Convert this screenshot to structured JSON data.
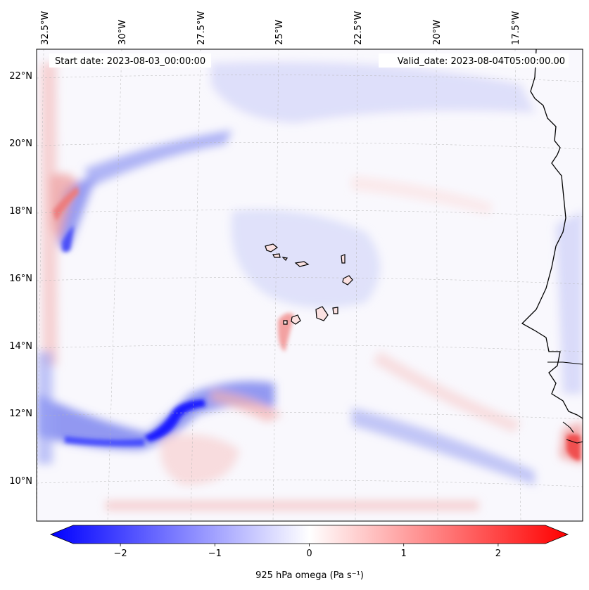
{
  "map": {
    "start_label": "Start date: 2023-08-03_00:00:00",
    "valid_label": "Valid_date: 2023-08-04T05:00:00.00",
    "lon_labels": [
      "32.5°W",
      "30°W",
      "27.5°W",
      "25°W",
      "22.5°W",
      "20°W",
      "17.5°W"
    ],
    "lat_labels": [
      "22°N",
      "20°N",
      "18°N",
      "16°N",
      "14°N",
      "12°N",
      "10°N"
    ],
    "lon_values": [
      -32.5,
      -30,
      -27.5,
      -25,
      -22.5,
      -20,
      -17.5
    ],
    "lat_values": [
      22,
      20,
      18,
      16,
      14,
      12,
      10
    ],
    "extent": {
      "lon_min": -32.7,
      "lon_max": -15.4,
      "lat_min": 8.9,
      "lat_max": 22.8
    }
  },
  "colorbar": {
    "ticks": [
      {
        "value": -2,
        "label": "−2"
      },
      {
        "value": -1,
        "label": "−1"
      },
      {
        "value": 0,
        "label": "0"
      },
      {
        "value": 1,
        "label": "1"
      },
      {
        "value": 2,
        "label": "2"
      }
    ],
    "range": [
      -2.5,
      2.5
    ],
    "label": "925 hPa omega (Pa s⁻¹)",
    "colormap": "bwr",
    "colors": {
      "negative": "#0000ff",
      "zero": "#ffffff",
      "positive": "#ff0000"
    }
  }
}
